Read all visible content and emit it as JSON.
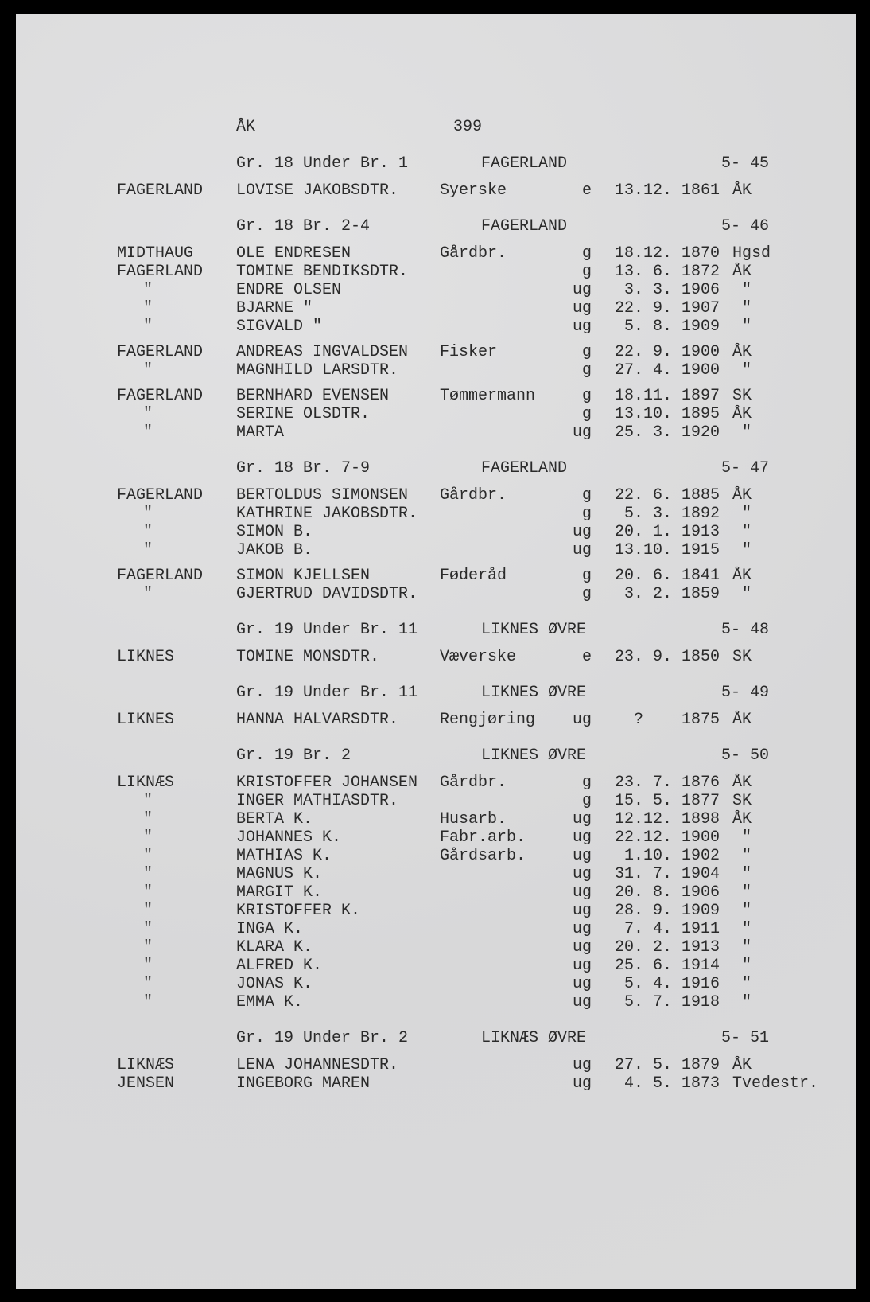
{
  "page_header": {
    "code": "ÅK",
    "page_number": "399"
  },
  "sections": [
    {
      "gr": "Gr. 18 Under Br. 1",
      "farm": "FAGERLAND",
      "number": "5- 45",
      "families": [
        [
          {
            "place": "FAGERLAND",
            "name": "LOVISE JAKOBSDTR.",
            "occupation": "Syerske",
            "status": "e",
            "date": "13.12. 1861",
            "parish": "ÅK"
          }
        ]
      ]
    },
    {
      "gr": "Gr. 18 Br. 2-4",
      "farm": "FAGERLAND",
      "number": "5- 46",
      "families": [
        [
          {
            "place": "MIDTHAUG",
            "name": "OLE ENDRESEN",
            "occupation": "Gårdbr.",
            "status": "g",
            "date": "18.12. 1870",
            "parish": "Hgsd"
          },
          {
            "place": "FAGERLAND",
            "name": "TOMINE BENDIKSDTR.",
            "occupation": "",
            "status": "g",
            "date": "13. 6. 1872",
            "parish": "ÅK"
          },
          {
            "place": "\"",
            "name": "ENDRE OLSEN",
            "occupation": "",
            "status": "ug",
            "date": "3. 3. 1906",
            "parish": " \""
          },
          {
            "place": "\"",
            "name": "BJARNE \"",
            "occupation": "",
            "status": "ug",
            "date": "22. 9. 1907",
            "parish": " \""
          },
          {
            "place": "\"",
            "name": "SIGVALD \"",
            "occupation": "",
            "status": "ug",
            "date": "5. 8. 1909",
            "parish": " \""
          }
        ],
        [
          {
            "place": "FAGERLAND",
            "name": "ANDREAS INGVALDSEN",
            "occupation": "Fisker",
            "status": "g",
            "date": "22. 9. 1900",
            "parish": "ÅK"
          },
          {
            "place": "\"",
            "name": "MAGNHILD LARSDTR.",
            "occupation": "",
            "status": "g",
            "date": "27. 4. 1900",
            "parish": " \""
          }
        ],
        [
          {
            "place": "FAGERLAND",
            "name": "BERNHARD EVENSEN",
            "occupation": "Tømmermann",
            "status": "g",
            "date": "18.11. 1897",
            "parish": "SK"
          },
          {
            "place": "\"",
            "name": "SERINE OLSDTR.",
            "occupation": "",
            "status": "g",
            "date": "13.10. 1895",
            "parish": "ÅK"
          },
          {
            "place": "\"",
            "name": "MARTA",
            "occupation": "",
            "status": "ug",
            "date": "25. 3. 1920",
            "parish": " \""
          }
        ]
      ]
    },
    {
      "gr": "Gr. 18 Br. 7-9",
      "farm": "FAGERLAND",
      "number": "5- 47",
      "families": [
        [
          {
            "place": "FAGERLAND",
            "name": "BERTOLDUS SIMONSEN",
            "occupation": "Gårdbr.",
            "status": "g",
            "date": "22. 6. 1885",
            "parish": "ÅK"
          },
          {
            "place": "\"",
            "name": "KATHRINE JAKOBSDTR.",
            "occupation": "",
            "status": "g",
            "date": "5. 3. 1892",
            "parish": " \""
          },
          {
            "place": "\"",
            "name": "SIMON B.",
            "occupation": "",
            "status": "ug",
            "date": "20. 1. 1913",
            "parish": " \""
          },
          {
            "place": "\"",
            "name": "JAKOB B.",
            "occupation": "",
            "status": "ug",
            "date": "13.10. 1915",
            "parish": " \""
          }
        ],
        [
          {
            "place": "FAGERLAND",
            "name": "SIMON KJELLSEN",
            "occupation": "Føderåd",
            "status": "g",
            "date": "20. 6. 1841",
            "parish": "ÅK"
          },
          {
            "place": "\"",
            "name": "GJERTRUD DAVIDSDTR.",
            "occupation": "",
            "status": "g",
            "date": "3. 2. 1859",
            "parish": " \""
          }
        ]
      ]
    },
    {
      "gr": "Gr. 19 Under Br. 11",
      "farm": "LIKNES ØVRE",
      "number": "5- 48",
      "families": [
        [
          {
            "place": "LIKNES",
            "name": "TOMINE MONSDTR.",
            "occupation": "Væverske",
            "status": "e",
            "date": "23. 9. 1850",
            "parish": "SK"
          }
        ]
      ]
    },
    {
      "gr": "Gr. 19 Under Br. 11",
      "farm": "LIKNES ØVRE",
      "number": "5- 49",
      "families": [
        [
          {
            "place": "LIKNES",
            "name": "HANNA HALVARSDTR.",
            "occupation": "Rengjøring",
            "status": "ug",
            "date": "?    1875",
            "parish": "ÅK"
          }
        ]
      ]
    },
    {
      "gr": "Gr. 19 Br. 2",
      "farm": "LIKNES ØVRE",
      "number": "5- 50",
      "families": [
        [
          {
            "place": "LIKNÆS",
            "name": "KRISTOFFER JOHANSEN",
            "occupation": "Gårdbr.",
            "status": "g",
            "date": "23. 7. 1876",
            "parish": "ÅK"
          },
          {
            "place": "\"",
            "name": "INGER MATHIASDTR.",
            "occupation": "",
            "status": "g",
            "date": "15. 5. 1877",
            "parish": "SK"
          },
          {
            "place": "\"",
            "name": "BERTA K.",
            "occupation": "Husarb.",
            "status": "ug",
            "date": "12.12. 1898",
            "parish": "ÅK"
          },
          {
            "place": "\"",
            "name": "JOHANNES K.",
            "occupation": "Fabr.arb.",
            "status": "ug",
            "date": "22.12. 1900",
            "parish": " \""
          },
          {
            "place": "\"",
            "name": "MATHIAS K.",
            "occupation": "Gårdsarb.",
            "status": "ug",
            "date": "1.10. 1902",
            "parish": " \""
          },
          {
            "place": "\"",
            "name": "MAGNUS K.",
            "occupation": "",
            "status": "ug",
            "date": "31. 7. 1904",
            "parish": " \""
          },
          {
            "place": "\"",
            "name": "MARGIT K.",
            "occupation": "",
            "status": "ug",
            "date": "20. 8. 1906",
            "parish": " \""
          },
          {
            "place": "\"",
            "name": "KRISTOFFER K.",
            "occupation": "",
            "status": "ug",
            "date": "28. 9. 1909",
            "parish": " \""
          },
          {
            "place": "\"",
            "name": "INGA K.",
            "occupation": "",
            "status": "ug",
            "date": "7. 4. 1911",
            "parish": " \""
          },
          {
            "place": "\"",
            "name": "KLARA K.",
            "occupation": "",
            "status": "ug",
            "date": "20. 2. 1913",
            "parish": " \""
          },
          {
            "place": "\"",
            "name": "ALFRED K.",
            "occupation": "",
            "status": "ug",
            "date": "25. 6. 1914",
            "parish": " \""
          },
          {
            "place": "\"",
            "name": "JONAS K.",
            "occupation": "",
            "status": "ug",
            "date": "5. 4. 1916",
            "parish": " \""
          },
          {
            "place": "\"",
            "name": "EMMA K.",
            "occupation": "",
            "status": "ug",
            "date": "5. 7. 1918",
            "parish": " \""
          }
        ]
      ]
    },
    {
      "gr": "Gr. 19 Under Br. 2",
      "farm": "LIKNÆS ØVRE",
      "number": "5- 51",
      "families": [
        [
          {
            "place": "LIKNÆS",
            "name": "LENA JOHANNESDTR.",
            "occupation": "",
            "status": "ug",
            "date": "27. 5. 1879",
            "parish": "ÅK"
          },
          {
            "place": "JENSEN",
            "name": "INGEBORG MAREN",
            "occupation": "",
            "status": "ug",
            "date": "4. 5. 1873",
            "parish": "Tvedestr."
          }
        ]
      ]
    }
  ]
}
